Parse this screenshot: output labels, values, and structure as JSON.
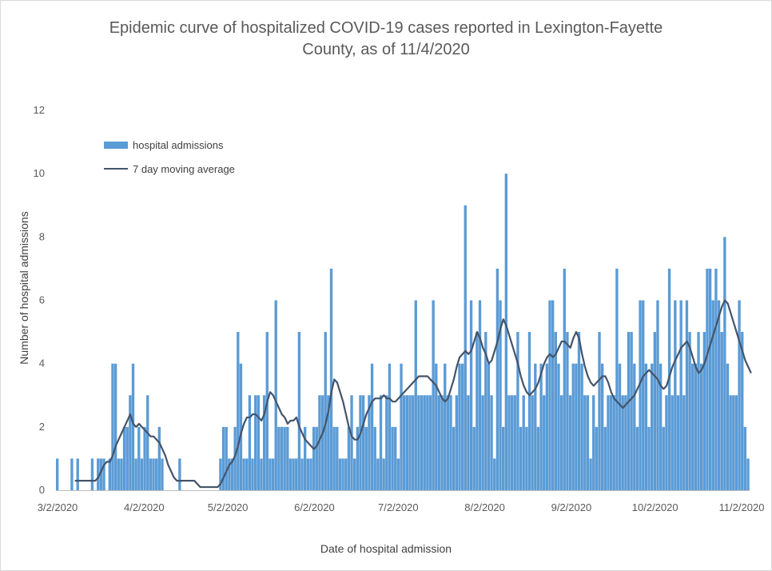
{
  "chart_data": {
    "type": "bar",
    "title": "Epidemic curve of hospitalized COVID-19 cases reported in Lexington-Fayette County, as of 11/4/2020",
    "title_lines": [
      "Epidemic curve of hospitalized COVID-19 cases reported in Lexington-Fayette",
      "County, as of 11/4/2020"
    ],
    "xlabel": "Date of hospital admission",
    "ylabel": "Number of hospital admissions",
    "ylim": [
      0,
      12
    ],
    "yticks": [
      "0",
      "2",
      "4",
      "6",
      "8",
      "10",
      "12"
    ],
    "xticks": [
      "3/2/2020",
      "4/2/2020",
      "5/2/2020",
      "6/2/2020",
      "7/2/2020",
      "8/2/2020",
      "9/2/2020",
      "10/2/2020",
      "11/2/2020"
    ],
    "x_start": "3/2/2020",
    "x_end": "11/2/2020",
    "grid": false,
    "legend_position": "top-left",
    "colors": {
      "bars": "#5b9bd5",
      "line": "#44546a",
      "axis": "#bfbfbf"
    },
    "series": [
      {
        "name": "hospital admissions",
        "kind": "bar",
        "values": [
          1,
          0,
          0,
          0,
          0,
          1,
          0,
          1,
          0,
          0,
          0,
          0,
          1,
          0,
          1,
          1,
          1,
          0,
          1,
          4,
          4,
          1,
          1,
          2,
          2,
          3,
          4,
          1,
          2,
          1,
          2,
          3,
          1,
          1,
          1,
          2,
          1,
          0,
          0,
          0,
          0,
          0,
          1,
          0,
          0,
          0,
          0,
          0,
          0,
          0,
          0,
          0,
          0,
          0,
          0,
          0,
          1,
          2,
          2,
          1,
          1,
          2,
          5,
          4,
          1,
          1,
          3,
          1,
          3,
          3,
          1,
          3,
          5,
          1,
          1,
          6,
          2,
          2,
          2,
          2,
          1,
          1,
          1,
          5,
          1,
          2,
          1,
          1,
          2,
          2,
          3,
          3,
          5,
          3,
          7,
          2,
          2,
          1,
          1,
          1,
          2,
          3,
          1,
          2,
          3,
          3,
          2,
          3,
          4,
          2,
          1,
          3,
          1,
          3,
          4,
          2,
          2,
          1,
          4,
          3,
          3,
          3,
          3,
          6,
          3,
          3,
          3,
          3,
          3,
          6,
          4,
          3,
          3,
          4,
          3,
          3,
          2,
          3,
          4,
          4,
          9,
          3,
          6,
          2,
          5,
          6,
          3,
          5,
          4,
          3,
          1,
          7,
          6,
          2,
          10,
          3,
          3,
          3,
          5,
          2,
          3,
          2,
          5,
          3,
          4,
          2,
          4,
          3,
          4,
          6,
          6,
          5,
          4,
          3,
          7,
          5,
          3,
          4,
          4,
          5,
          4,
          3,
          3,
          1,
          3,
          2,
          5,
          4,
          2,
          3,
          3,
          3,
          7,
          4,
          3,
          3,
          5,
          5,
          4,
          2,
          6,
          6,
          4,
          2,
          4,
          5,
          6,
          4,
          2,
          3,
          7,
          3,
          6,
          3,
          6,
          3,
          6,
          5,
          4,
          4,
          5,
          4,
          5,
          7,
          7,
          6,
          7,
          6,
          5,
          8,
          4,
          3,
          3,
          3,
          6,
          5,
          2,
          1
        ]
      },
      {
        "name": "7 day moving average",
        "kind": "line",
        "values": [
          null,
          null,
          null,
          null,
          null,
          null,
          0.3,
          0.3,
          0.3,
          0.3,
          0.3,
          0.3,
          0.3,
          0.3,
          0.4,
          0.6,
          0.8,
          0.9,
          0.9,
          1.1,
          1.4,
          1.6,
          1.8,
          2.0,
          2.2,
          2.4,
          2.1,
          2.0,
          2.1,
          2.0,
          1.9,
          1.8,
          1.7,
          1.7,
          1.6,
          1.5,
          1.3,
          1.1,
          0.8,
          0.6,
          0.4,
          0.3,
          0.3,
          0.3,
          0.3,
          0.3,
          0.3,
          0.3,
          0.2,
          0.1,
          0.1,
          0.1,
          0.1,
          0.1,
          0.1,
          0.1,
          0.2,
          0.4,
          0.6,
          0.8,
          0.9,
          1.1,
          1.4,
          1.8,
          2.1,
          2.3,
          2.3,
          2.4,
          2.4,
          2.3,
          2.2,
          2.4,
          2.8,
          3.1,
          3.0,
          2.8,
          2.6,
          2.4,
          2.3,
          2.1,
          2.2,
          2.2,
          2.3,
          2.0,
          1.8,
          1.6,
          1.5,
          1.4,
          1.3,
          1.4,
          1.6,
          1.8,
          2.1,
          2.5,
          3.1,
          3.5,
          3.4,
          3.1,
          2.8,
          2.4,
          2.0,
          1.7,
          1.6,
          1.6,
          1.8,
          2.1,
          2.4,
          2.6,
          2.8,
          2.9,
          2.9,
          2.9,
          3.0,
          2.9,
          2.9,
          2.8,
          2.8,
          2.9,
          3.0,
          3.1,
          3.2,
          3.3,
          3.4,
          3.5,
          3.6,
          3.6,
          3.6,
          3.6,
          3.5,
          3.4,
          3.3,
          3.1,
          2.9,
          2.8,
          2.9,
          3.2,
          3.5,
          3.9,
          4.2,
          4.3,
          4.4,
          4.3,
          4.4,
          4.7,
          5.0,
          4.8,
          4.5,
          4.3,
          4.0,
          4.1,
          4.4,
          4.7,
          5.1,
          5.4,
          5.2,
          4.9,
          4.6,
          4.3,
          4.0,
          3.6,
          3.3,
          3.1,
          3.0,
          3.1,
          3.2,
          3.4,
          3.7,
          4.0,
          4.2,
          4.3,
          4.2,
          4.3,
          4.5,
          4.7,
          4.7,
          4.6,
          4.5,
          4.8,
          5.0,
          4.8,
          4.3,
          3.9,
          3.6,
          3.4,
          3.3,
          3.4,
          3.5,
          3.6,
          3.6,
          3.4,
          3.1,
          2.9,
          2.8,
          2.7,
          2.6,
          2.7,
          2.8,
          2.9,
          3.0,
          3.2,
          3.4,
          3.6,
          3.7,
          3.8,
          3.7,
          3.6,
          3.5,
          3.3,
          3.2,
          3.3,
          3.6,
          3.9,
          4.1,
          4.3,
          4.5,
          4.6,
          4.7,
          4.5,
          4.2,
          3.9,
          3.7,
          3.8,
          4.0,
          4.3,
          4.6,
          4.9,
          5.2,
          5.5,
          5.8,
          6.0,
          5.9,
          5.6,
          5.3,
          5.0,
          4.7,
          4.4,
          4.1,
          3.9,
          3.7
        ]
      }
    ]
  }
}
